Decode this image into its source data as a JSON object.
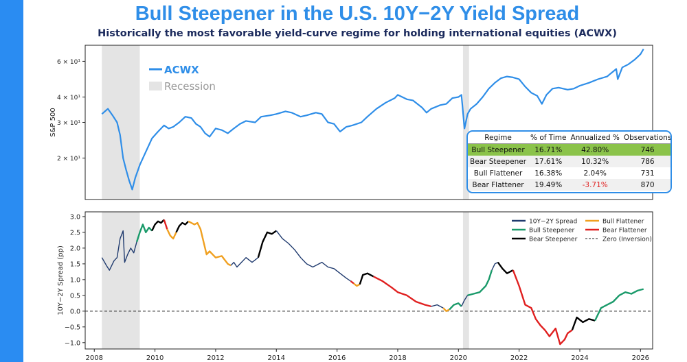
{
  "header": {
    "title": "Bull Steepener in the U.S. 10Y−2Y Yield Spread",
    "subtitle": "Historically the most favorable yield-curve regime for holding international equities (ACWX)"
  },
  "colors": {
    "accent": "#2a8cf2",
    "acwx": "#2f8ee8",
    "spread": "#1f3a6e",
    "bull_steepener": "#1a9a6a",
    "bear_steepener": "#000000",
    "bull_flattener": "#f0a020",
    "bear_flattener": "#e02020",
    "recession": "#e4e4e4",
    "highlight_row": "#8bc34a",
    "negative_text": "#e02020"
  },
  "chart_data": [
    {
      "type": "line",
      "ylabel": "S&P 500",
      "yscale": "log",
      "ylim": [
        12.5,
        72
      ],
      "xlim": [
        2007.7,
        2026.4
      ],
      "yticks": [
        {
          "value": 20,
          "label": "2 × 10¹"
        },
        {
          "value": 30,
          "label": "3 × 10¹"
        },
        {
          "value": 40,
          "label": "4 × 10¹"
        },
        {
          "value": 60,
          "label": "6 × 10¹"
        }
      ],
      "legend": [
        {
          "label": "ACWX",
          "style": "line"
        },
        {
          "label": "Recession",
          "style": "patch"
        }
      ],
      "recessions": [
        [
          2008.25,
          2009.5
        ],
        [
          2020.15,
          2020.35
        ]
      ],
      "series": [
        {
          "name": "ACWX",
          "x": [
            2008.25,
            2008.4,
            2008.45,
            2008.6,
            2008.75,
            2008.85,
            2008.95,
            2009.05,
            2009.15,
            2009.25,
            2009.35,
            2009.5,
            2009.7,
            2009.9,
            2010.1,
            2010.3,
            2010.45,
            2010.6,
            2010.8,
            2011.0,
            2011.2,
            2011.35,
            2011.5,
            2011.65,
            2011.8,
            2012.0,
            2012.2,
            2012.4,
            2012.6,
            2012.8,
            2013.0,
            2013.3,
            2013.5,
            2013.8,
            2014.0,
            2014.3,
            2014.5,
            2014.8,
            2015.0,
            2015.3,
            2015.5,
            2015.7,
            2015.9,
            2016.1,
            2016.3,
            2016.5,
            2016.8,
            2017.0,
            2017.3,
            2017.6,
            2017.9,
            2018.0,
            2018.3,
            2018.5,
            2018.8,
            2018.95,
            2019.1,
            2019.4,
            2019.6,
            2019.8,
            2020.0,
            2020.1,
            2020.2,
            2020.3,
            2020.4,
            2020.6,
            2020.8,
            2021.0,
            2021.2,
            2021.4,
            2021.6,
            2021.8,
            2022.0,
            2022.2,
            2022.4,
            2022.6,
            2022.75,
            2022.9,
            2023.1,
            2023.3,
            2023.6,
            2023.8,
            2024.0,
            2024.3,
            2024.6,
            2024.9,
            2025.0,
            2025.2,
            2025.25,
            2025.4,
            2025.6,
            2025.8,
            2026.0,
            2026.1
          ],
          "values": [
            33,
            34.5,
            35,
            32.5,
            30,
            26,
            20,
            17.5,
            15.5,
            14,
            16,
            18.5,
            21.5,
            25,
            27,
            29,
            28,
            28.5,
            30,
            32,
            31.5,
            29.5,
            28.5,
            26.5,
            25.5,
            28,
            27.5,
            26.5,
            28,
            29.5,
            30.5,
            30,
            32,
            32.5,
            33,
            34,
            33.5,
            32,
            32.5,
            33.5,
            33,
            30,
            29.5,
            27,
            28.5,
            29,
            30,
            32,
            35,
            37.5,
            39.5,
            41,
            39,
            38.5,
            35.5,
            33.5,
            35,
            36.5,
            37,
            39.5,
            40,
            41,
            28,
            33,
            35,
            37,
            40,
            44,
            47,
            49.5,
            50.5,
            50,
            49,
            45,
            42,
            40.5,
            37,
            41,
            44,
            44.5,
            43.5,
            44,
            45.5,
            47,
            49,
            50.5,
            52,
            55,
            49,
            56,
            58,
            61,
            65,
            69
          ]
        }
      ],
      "table": {
        "headers": [
          "Regime",
          "% of Time",
          "Annualized %",
          "Observations"
        ],
        "rows": [
          {
            "regime": "Bull Steepener",
            "pct_time": "16.71%",
            "annualized": "42.80%",
            "obs": "746"
          },
          {
            "regime": "Bear Steepener",
            "pct_time": "17.61%",
            "annualized": "10.32%",
            "obs": "786"
          },
          {
            "regime": "Bull Flattener",
            "pct_time": "16.38%",
            "annualized": "2.04%",
            "obs": "731"
          },
          {
            "regime": "Bear Flattener",
            "pct_time": "19.49%",
            "annualized": "-3.71%",
            "obs": "870"
          }
        ]
      }
    },
    {
      "type": "line",
      "ylabel": "10Y−2Y Spread (pp)",
      "ylim": [
        -1.2,
        3.15
      ],
      "xlim": [
        2007.7,
        2026.4
      ],
      "xticks": [
        2008,
        2010,
        2012,
        2014,
        2016,
        2018,
        2020,
        2022,
        2024,
        2026
      ],
      "xtick_labels": [
        "2008",
        "2010",
        "2012",
        "2014",
        "2016",
        "2018",
        "2020",
        "2022",
        "2024",
        "2026"
      ],
      "yticks": [
        -1.0,
        -0.5,
        0.0,
        0.5,
        1.0,
        1.5,
        2.0,
        2.5,
        3.0
      ],
      "ytick_labels": [
        "−1.0",
        "−0.5",
        "0.0",
        "0.5",
        "1.0",
        "1.5",
        "2.0",
        "2.5",
        "3.0"
      ],
      "zero_line": 0,
      "recessions": [
        [
          2008.25,
          2009.5
        ],
        [
          2020.15,
          2020.35
        ]
      ],
      "legend": [
        {
          "label": "10Y−2Y Spread",
          "color_key": "spread",
          "style": "line"
        },
        {
          "label": "Bull Flattener",
          "color_key": "bull_flattener",
          "style": "line"
        },
        {
          "label": "Bull Steepener",
          "color_key": "bull_steepener",
          "style": "line"
        },
        {
          "label": "Bear Flattener",
          "color_key": "bear_flattener",
          "style": "line"
        },
        {
          "label": "Bear Steepener",
          "color_key": "bear_steepener",
          "style": "line"
        },
        {
          "label": "Zero (Inversion)",
          "color_key": "spread",
          "style": "dashed"
        }
      ],
      "series": [
        {
          "name": "10Y−2Y Spread",
          "color_key": "spread",
          "x": [
            2008.25,
            2008.4,
            2008.5,
            2008.65,
            2008.75,
            2008.85,
            2008.95,
            2009.0,
            2009.1,
            2009.2,
            2009.3,
            2009.4
          ],
          "values": [
            1.7,
            1.45,
            1.3,
            1.6,
            1.7,
            2.3,
            2.55,
            1.55,
            1.8,
            2.0,
            1.85,
            2.2
          ]
        },
        {
          "name": "Bull Steepener",
          "color_key": "bull_steepener",
          "x": [
            2009.4,
            2009.5,
            2009.6,
            2009.7,
            2009.8,
            2009.9
          ],
          "values": [
            2.2,
            2.5,
            2.75,
            2.5,
            2.65,
            2.55
          ]
        },
        {
          "name": "Bear Steepener",
          "color_key": "bear_steepener",
          "x": [
            2009.9,
            2010.0,
            2010.1,
            2010.2,
            2010.3
          ],
          "values": [
            2.55,
            2.75,
            2.85,
            2.8,
            2.9
          ]
        },
        {
          "name": "Bear Flattener",
          "color_key": "bear_flattener",
          "x": [
            2010.3,
            2010.4
          ],
          "values": [
            2.9,
            2.6
          ]
        },
        {
          "name": "Bull Flattener",
          "color_key": "bull_flattener",
          "x": [
            2010.4,
            2010.5,
            2010.6,
            2010.7
          ],
          "values": [
            2.6,
            2.4,
            2.3,
            2.5
          ]
        },
        {
          "name": "Bear Steepener",
          "color_key": "bear_steepener",
          "x": [
            2010.7,
            2010.8,
            2010.9,
            2011.0,
            2011.1
          ],
          "values": [
            2.5,
            2.7,
            2.8,
            2.75,
            2.85
          ]
        },
        {
          "name": "Bull Flattener",
          "color_key": "bull_flattener",
          "x": [
            2011.1,
            2011.3,
            2011.4,
            2011.5,
            2011.6,
            2011.7,
            2011.8,
            2012.0,
            2012.2,
            2012.4,
            2012.5
          ],
          "values": [
            2.85,
            2.75,
            2.8,
            2.6,
            2.2,
            1.8,
            1.9,
            1.7,
            1.75,
            1.5,
            1.45
          ]
        },
        {
          "name": "10Y−2Y Spread",
          "color_key": "spread",
          "x": [
            2012.5,
            2012.6,
            2012.7,
            2012.9,
            2013.0,
            2013.2,
            2013.4
          ],
          "values": [
            1.45,
            1.55,
            1.4,
            1.6,
            1.7,
            1.55,
            1.7
          ]
        },
        {
          "name": "Bear Steepener",
          "color_key": "bear_steepener",
          "x": [
            2013.4,
            2013.55,
            2013.7,
            2013.85,
            2014.0
          ],
          "values": [
            1.7,
            2.2,
            2.5,
            2.45,
            2.55
          ]
        },
        {
          "name": "10Y−2Y Spread",
          "color_key": "spread",
          "x": [
            2014.0,
            2014.2,
            2014.4,
            2014.6,
            2014.8,
            2015.0,
            2015.2,
            2015.5,
            2015.7,
            2015.9,
            2016.1,
            2016.3,
            2016.45
          ],
          "values": [
            2.55,
            2.3,
            2.15,
            1.95,
            1.7,
            1.5,
            1.4,
            1.55,
            1.4,
            1.35,
            1.2,
            1.05,
            0.95
          ]
        },
        {
          "name": "Bear Flattener",
          "color_key": "bear_flattener",
          "x": [
            2016.45,
            2016.55
          ],
          "values": [
            0.95,
            0.88
          ]
        },
        {
          "name": "Bull Flattener",
          "color_key": "bull_flattener",
          "x": [
            2016.55,
            2016.65,
            2016.75
          ],
          "values": [
            0.88,
            0.8,
            0.85
          ]
        },
        {
          "name": "Bear Steepener",
          "color_key": "bear_steepener",
          "x": [
            2016.75,
            2016.85,
            2017.0,
            2017.2
          ],
          "values": [
            0.85,
            1.15,
            1.2,
            1.1
          ]
        },
        {
          "name": "Bear Flattener",
          "color_key": "bear_flattener",
          "x": [
            2017.2,
            2017.5,
            2017.8,
            2018.0,
            2018.3,
            2018.6,
            2018.9,
            2019.1
          ],
          "values": [
            1.1,
            0.95,
            0.75,
            0.6,
            0.5,
            0.3,
            0.2,
            0.15
          ]
        },
        {
          "name": "10Y−2Y Spread",
          "color_key": "spread",
          "x": [
            2019.1,
            2019.3,
            2019.5
          ],
          "values": [
            0.15,
            0.2,
            0.1
          ]
        },
        {
          "name": "Bull Flattener",
          "color_key": "bull_flattener",
          "x": [
            2019.5,
            2019.6,
            2019.7
          ],
          "values": [
            0.1,
            0.0,
            0.05
          ]
        },
        {
          "name": "Bull Steepener",
          "color_key": "bull_steepener",
          "x": [
            2019.7,
            2019.85,
            2020.0,
            2020.1
          ],
          "values": [
            0.05,
            0.2,
            0.25,
            0.15
          ]
        },
        {
          "name": "10Y−2Y Spread",
          "color_key": "spread",
          "x": [
            2020.1,
            2020.2,
            2020.3
          ],
          "values": [
            0.15,
            0.35,
            0.5
          ]
        },
        {
          "name": "Bull Steepener",
          "color_key": "bull_steepener",
          "x": [
            2020.3,
            2020.5,
            2020.7,
            2020.9,
            2021.0,
            2021.1
          ],
          "values": [
            0.5,
            0.55,
            0.6,
            0.8,
            1.0,
            1.3
          ]
        },
        {
          "name": "10Y−2Y Spread",
          "color_key": "spread",
          "x": [
            2021.1,
            2021.2,
            2021.3
          ],
          "values": [
            1.3,
            1.5,
            1.55
          ]
        },
        {
          "name": "Bear Steepener",
          "color_key": "bear_steepener",
          "x": [
            2021.3,
            2021.45,
            2021.6,
            2021.8
          ],
          "values": [
            1.55,
            1.35,
            1.2,
            1.3
          ]
        },
        {
          "name": "Bear Flattener",
          "color_key": "bear_flattener",
          "x": [
            2021.8,
            2022.0,
            2022.2,
            2022.4,
            2022.55,
            2022.7,
            2022.85,
            2023.0,
            2023.2,
            2023.35,
            2023.5,
            2023.6,
            2023.75
          ],
          "values": [
            1.3,
            0.8,
            0.2,
            0.1,
            -0.25,
            -0.45,
            -0.6,
            -0.8,
            -0.55,
            -1.05,
            -0.9,
            -0.7,
            -0.6
          ]
        },
        {
          "name": "Bear Steepener",
          "color_key": "bear_steepener",
          "x": [
            2023.75,
            2023.9,
            2024.1,
            2024.3,
            2024.5
          ],
          "values": [
            -0.6,
            -0.2,
            -0.35,
            -0.25,
            -0.3
          ]
        },
        {
          "name": "Bull Steepener",
          "color_key": "bull_steepener",
          "x": [
            2024.5,
            2024.7,
            2024.9,
            2025.1,
            2025.3,
            2025.5,
            2025.7,
            2025.9,
            2026.1
          ],
          "values": [
            -0.3,
            0.1,
            0.2,
            0.3,
            0.5,
            0.6,
            0.55,
            0.65,
            0.7
          ]
        }
      ]
    }
  ]
}
